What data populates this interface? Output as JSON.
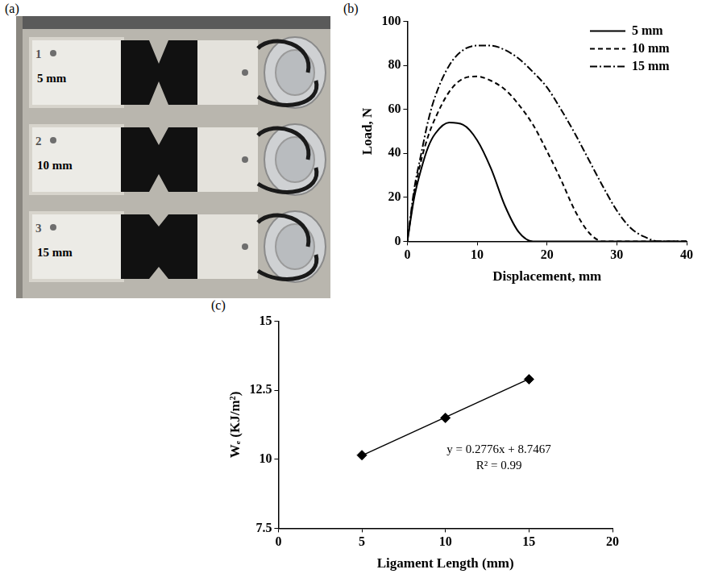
{
  "photo": {
    "panel": "(a)",
    "specimens": [
      {
        "number": "1",
        "label": "5 mm"
      },
      {
        "number": "2",
        "label": "10 mm"
      },
      {
        "number": "3",
        "label": "15 mm"
      }
    ]
  },
  "chart_data": [
    {
      "panel": "(b)",
      "type": "line",
      "x_label": "Displacement, mm",
      "y_label": "Load, N",
      "x": [
        0,
        1,
        2,
        3,
        4,
        6,
        8,
        10,
        12,
        14,
        16,
        18,
        20,
        22,
        24,
        26,
        28,
        30,
        32,
        34,
        36,
        38,
        40
      ],
      "series": [
        {
          "name": "5 mm",
          "color": "#000000",
          "line_style": "solid",
          "values": [
            0,
            20,
            33,
            43,
            49,
            54,
            53,
            46,
            33,
            16,
            4,
            0,
            0,
            0,
            0,
            0,
            0,
            0,
            0,
            0,
            0,
            0,
            0
          ]
        },
        {
          "name": "10 mm",
          "color": "#000000",
          "line_style": "dashed",
          "values": [
            0,
            22,
            37,
            48,
            56,
            68,
            74,
            75,
            73,
            69,
            62,
            53,
            41,
            28,
            14,
            4,
            0,
            0,
            0,
            0,
            0,
            0,
            0
          ]
        },
        {
          "name": "15 mm",
          "color": "#000000",
          "line_style": "dashdot",
          "values": [
            0,
            24,
            40,
            55,
            66,
            80,
            87,
            89,
            89,
            87,
            83,
            77,
            70,
            60,
            49,
            37,
            25,
            14,
            6,
            2,
            0,
            0,
            0
          ]
        }
      ],
      "xlim": [
        0,
        40
      ],
      "xticks": [
        0,
        10,
        20,
        30,
        40
      ],
      "ylim": [
        0,
        100
      ],
      "yticks": [
        0,
        20,
        40,
        60,
        80,
        100
      ],
      "grid": false,
      "legend": "upper right"
    },
    {
      "panel": "(c)",
      "type": "scatter",
      "x_label": "Ligament Length (mm)",
      "y_label": "Wₑ (KJ/m²)",
      "x": [
        5,
        10,
        15
      ],
      "values": [
        10.15,
        11.5,
        12.9
      ],
      "color": "#000000",
      "marker": "diamond",
      "fit": {
        "slope": 0.2776,
        "intercept": 8.7467,
        "equation": "y = 0.2776x + 8.7467",
        "r2_label": "R² = 0.99"
      },
      "xlim": [
        0,
        20
      ],
      "xticks": [
        0,
        5,
        10,
        15,
        20
      ],
      "ylim": [
        7.5,
        15
      ],
      "yticks": [
        7.5,
        10,
        12.5,
        15
      ],
      "grid": false
    }
  ]
}
